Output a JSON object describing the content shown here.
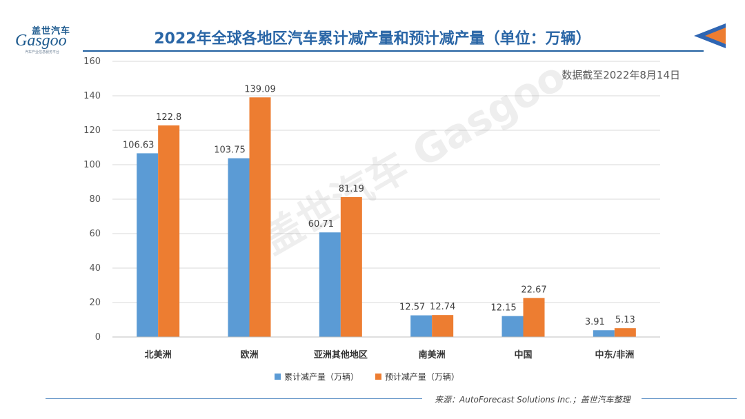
{
  "header": {
    "logo_cn": "盖世汽车",
    "logo_en": "Gasgoo",
    "logo_tagline": "汽车产业信息服务平台",
    "title": "2022年全球各地区汽车累计减产量和预计减产量（单位：万辆）"
  },
  "note": "数据截至2022年8月14日",
  "watermark": "盖世汽车 Gasgoo",
  "footer": {
    "source": "来源：AutoForecast Solutions Inc.；盖世汽车整理"
  },
  "colors": {
    "series1": "#5b9bd5",
    "series2": "#ed7d31",
    "title": "#2a66a6",
    "corner_blue": "#2f66b3",
    "corner_orange": "#ed7d31"
  },
  "chart_data": {
    "type": "bar",
    "categories": [
      "北美洲",
      "欧洲",
      "亚洲其他地区",
      "南美洲",
      "中国",
      "中东/非洲"
    ],
    "series": [
      {
        "name": "累计减产量（万辆）",
        "values": [
          106.63,
          103.75,
          60.71,
          12.57,
          12.15,
          3.91
        ]
      },
      {
        "name": "预计减产量（万辆）",
        "values": [
          122.8,
          139.09,
          81.19,
          12.74,
          22.67,
          5.13
        ]
      }
    ],
    "data_labels": [
      [
        "106.63",
        "103.75",
        "60.71",
        "12.57",
        "12.15",
        "3.91"
      ],
      [
        "122.8",
        "139.09",
        "81.19",
        "12.74",
        "22.67",
        "5.13"
      ]
    ],
    "yticks": [
      "0",
      "20",
      "40",
      "60",
      "80",
      "100",
      "120",
      "140",
      "160"
    ],
    "ylim": [
      0,
      160
    ],
    "grid": true,
    "legend_position": "bottom"
  }
}
